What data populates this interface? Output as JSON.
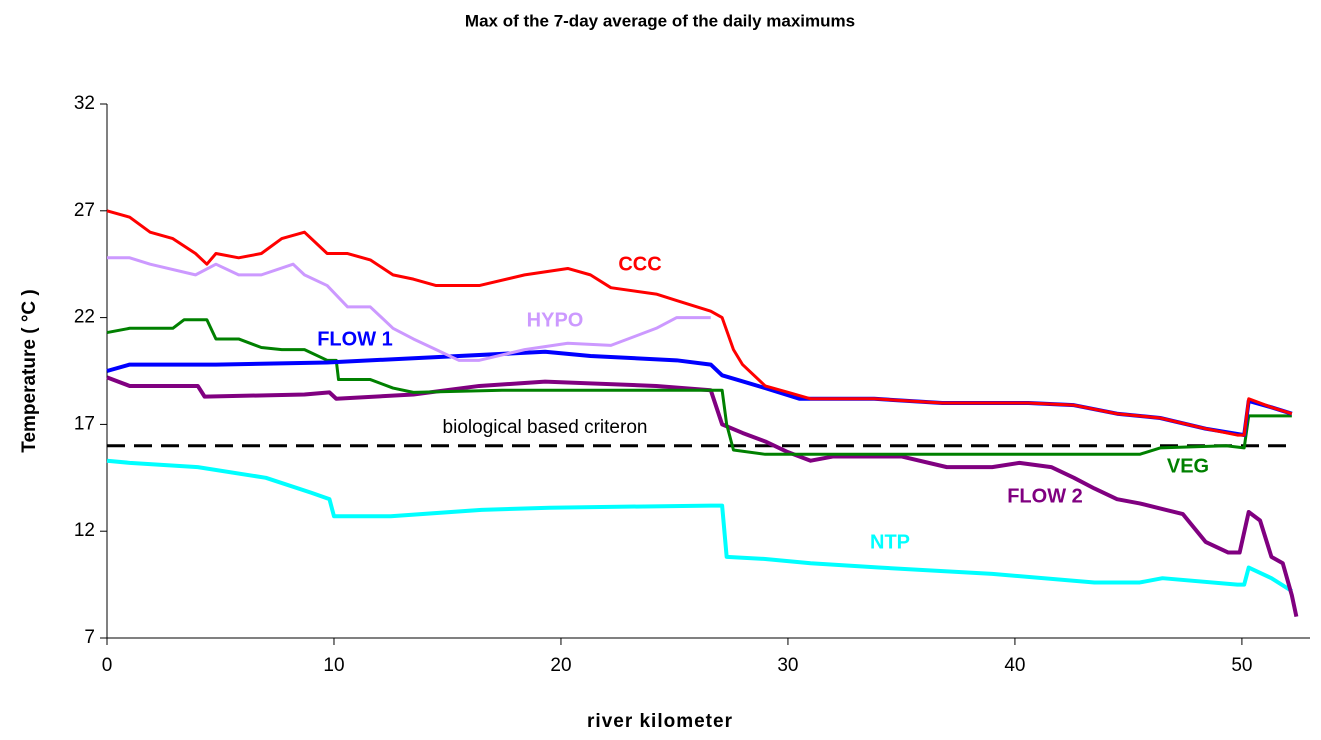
{
  "chart_data": {
    "type": "line",
    "title": "Max of the 7-day average of the daily maximums",
    "x_label": "river kilometer",
    "y_label": "Temperature ( °C )",
    "xlim": [
      0,
      53
    ],
    "xticks": [
      0,
      10,
      20,
      30,
      40,
      50
    ],
    "ylim": [
      7,
      32
    ],
    "yticks": [
      7,
      12,
      17,
      22,
      27,
      32
    ],
    "criterion": {
      "label": "biological based criteron",
      "value": 16
    },
    "series": [
      {
        "name": "NTP",
        "color": "#00ffff",
        "x": [
          0,
          1,
          4,
          7,
          9,
          9.8,
          10,
          12.5,
          16.5,
          19.5,
          26.6,
          27.1,
          27.3,
          29,
          31,
          34,
          39,
          43.5,
          45.5,
          46.5,
          49.8,
          50.1,
          50.3,
          51.3,
          52.2
        ],
        "values": [
          15.3,
          15.2,
          15,
          14.5,
          13.8,
          13.5,
          12.7,
          12.7,
          13,
          13.1,
          13.2,
          13.2,
          10.8,
          10.7,
          10.5,
          10.3,
          10,
          9.6,
          9.6,
          9.8,
          9.5,
          9.5,
          10.3,
          9.8,
          9.2
        ]
      },
      {
        "name": "FLOW 2",
        "color": "#800080",
        "x": [
          0,
          1,
          4,
          4.3,
          8.7,
          9.8,
          10.1,
          13.5,
          16.4,
          19.3,
          24.2,
          26.6,
          27.1,
          28,
          29,
          30,
          31,
          32,
          35,
          37,
          39,
          40.2,
          41.6,
          42.6,
          43.5,
          44.5,
          45.5,
          47.4,
          48.4,
          49.4,
          49.9,
          50.3,
          50.8,
          51.3,
          51.8,
          52.2,
          52.4
        ],
        "values": [
          19.2,
          18.8,
          18.8,
          18.3,
          18.4,
          18.5,
          18.2,
          18.4,
          18.8,
          19,
          18.8,
          18.6,
          17,
          16.6,
          16.2,
          15.7,
          15.3,
          15.5,
          15.5,
          15,
          15,
          15.2,
          15,
          14.5,
          14,
          13.5,
          13.3,
          12.8,
          11.5,
          11,
          11,
          12.9,
          12.5,
          10.8,
          10.5,
          9,
          8
        ]
      },
      {
        "name": "VEG",
        "color": "#008000",
        "x": [
          0,
          1,
          2.9,
          3.4,
          4.4,
          4.8,
          5.8,
          6.8,
          7.7,
          8.7,
          9.7,
          10.1,
          10.2,
          11.6,
          12.6,
          13.5,
          17.4,
          26.6,
          27.1,
          27.3,
          27.6,
          29,
          38.7,
          45.5,
          46.4,
          49.3,
          50.1,
          50.3,
          52.2
        ],
        "values": [
          21.3,
          21.5,
          21.5,
          21.9,
          21.9,
          21,
          21,
          20.6,
          20.5,
          20.5,
          20,
          20,
          19.1,
          19.1,
          18.7,
          18.5,
          18.6,
          18.6,
          18.6,
          17,
          15.8,
          15.6,
          15.6,
          15.6,
          15.9,
          16,
          15.9,
          17.4,
          17.4
        ]
      },
      {
        "name": "FLOW 1",
        "color": "#0000ff",
        "x": [
          0,
          1,
          4.8,
          9.7,
          15.5,
          19.3,
          21.3,
          25.1,
          26.6,
          27.1,
          29,
          30.5,
          33.8,
          36.8,
          40.6,
          42.6,
          44.5,
          46.4,
          48.4,
          50.1,
          50.3,
          51.3,
          52.2
        ],
        "values": [
          19.5,
          19.8,
          19.8,
          19.9,
          20.2,
          20.4,
          20.2,
          20,
          19.8,
          19.3,
          18.7,
          18.2,
          18.2,
          18,
          18,
          17.9,
          17.5,
          17.3,
          16.8,
          16.5,
          18.1,
          17.8,
          17.5
        ]
      },
      {
        "name": "HYPO",
        "color": "#cc99ff",
        "x": [
          0,
          1,
          1.9,
          3.9,
          4.8,
          5.8,
          6.8,
          8.2,
          8.7,
          9.7,
          10.6,
          11.6,
          12.6,
          13.5,
          14.5,
          15.5,
          16.4,
          18.4,
          20.3,
          22.2,
          24.2,
          25.1,
          26.6
        ],
        "values": [
          24.8,
          24.8,
          24.5,
          24,
          24.5,
          24,
          24,
          24.5,
          24,
          23.5,
          22.5,
          22.5,
          21.5,
          21,
          20.5,
          20,
          20,
          20.5,
          20.8,
          20.7,
          21.5,
          22,
          22
        ]
      },
      {
        "name": "CCC",
        "color": "#ff0000",
        "x": [
          0,
          1,
          1.9,
          2.9,
          3.9,
          4.4,
          4.8,
          5.8,
          6.8,
          7.7,
          8.7,
          9.7,
          10.6,
          11.6,
          12.6,
          13.5,
          14.5,
          16.4,
          18.4,
          20.3,
          21.3,
          22.2,
          24.2,
          25.1,
          26.6,
          27.1,
          27.6,
          28,
          29,
          30,
          31,
          33.8,
          36.8,
          40.6,
          42.6,
          44.5,
          46.4,
          48.4,
          49.8,
          50.1,
          50.3,
          51.3,
          52.2
        ],
        "values": [
          27,
          26.7,
          26,
          25.7,
          25,
          24.5,
          25,
          24.8,
          25,
          25.7,
          26,
          25,
          25,
          24.7,
          24,
          23.8,
          23.5,
          23.5,
          24,
          24.3,
          24,
          23.4,
          23.1,
          22.8,
          22.3,
          22,
          20.5,
          19.8,
          18.8,
          18.5,
          18.2,
          18.2,
          18,
          18,
          17.9,
          17.5,
          17.3,
          16.8,
          16.5,
          16.5,
          18.2,
          17.8,
          17.5
        ]
      }
    ]
  }
}
